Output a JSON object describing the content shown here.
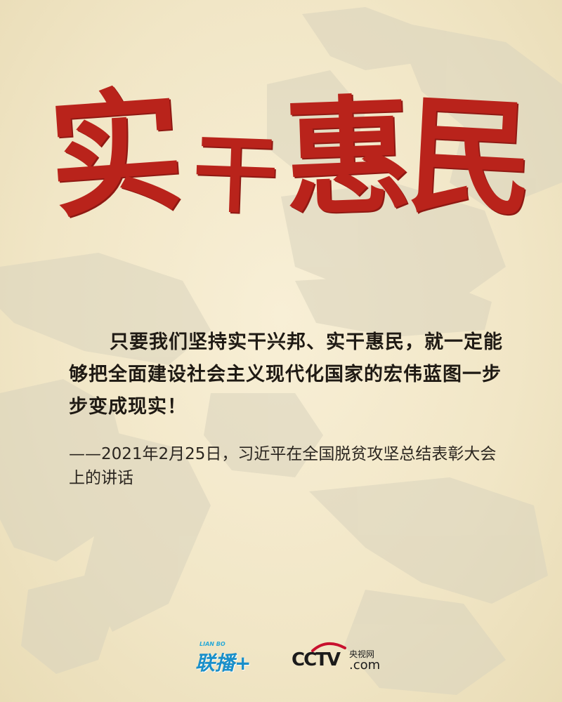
{
  "title": {
    "chars": [
      "实",
      "干",
      "惠",
      "民"
    ]
  },
  "quote": {
    "text": "只要我们坚持实干兴邦、实干惠民，就一定能够把全面建设社会主义现代化国家的宏伟蓝图一步步变成现实！"
  },
  "source": {
    "text": "——2021年2月25日，习近平在全国脱贫攻坚总结表彰大会上的讲话"
  },
  "logos": {
    "lianbo_small": "LIAN BO",
    "lianbo_main": "联播+",
    "cctv_main": "CCTV",
    "cctv_cn": "央视网",
    "cctv_com": ".com"
  },
  "colors": {
    "title_red": "#b9231b",
    "background": "#f1e6c6",
    "watermark": "#d9d3bd",
    "lianbo_blue": "#1a8fc9"
  },
  "icons": {
    "cctv_logo": "cctv-swoosh-icon",
    "lianbo_logo": "lianbo-plus-icon"
  }
}
